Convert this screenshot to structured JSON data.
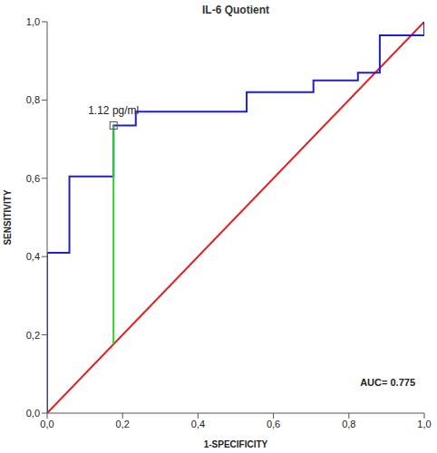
{
  "chart_data": {
    "type": "line",
    "title": "IL-6 Quotient",
    "x_label": "1-SPECIFICITY",
    "y_label": "SENSITIVITY",
    "xlim": [
      0,
      1
    ],
    "ylim": [
      0,
      1
    ],
    "xticks": [
      {
        "value": 0,
        "label": "0,0"
      },
      {
        "value": 0.2,
        "label": "0,2"
      },
      {
        "value": 0.4,
        "label": "0,4"
      },
      {
        "value": 0.6,
        "label": "0,6"
      },
      {
        "value": 0.8,
        "label": "0,8"
      },
      {
        "value": 1,
        "label": "1,0"
      }
    ],
    "yticks": [
      {
        "value": 0,
        "label": "0,0"
      },
      {
        "value": 0.2,
        "label": "0,2"
      },
      {
        "value": 0.4,
        "label": "0,4"
      },
      {
        "value": 0.6,
        "label": "0,6"
      },
      {
        "value": 0.8,
        "label": "0,8"
      },
      {
        "value": 1,
        "label": "1,0"
      }
    ],
    "grid": false,
    "series": [
      {
        "color": "#e02020",
        "line_style": "solid",
        "x": [
          0,
          1
        ],
        "values": [
          0,
          1
        ]
      },
      {
        "color": "#1f1fd6",
        "line_style": "solid",
        "x": [
          0,
          0,
          0.059,
          0.059,
          0.176,
          0.176,
          0.235,
          0.235,
          0.529,
          0.529,
          0.706,
          0.706,
          0.824,
          0.824,
          0.882,
          0.882,
          1,
          1
        ],
        "values": [
          0,
          0.41,
          0.41,
          0.605,
          0.605,
          0.735,
          0.735,
          0.77,
          0.77,
          0.82,
          0.82,
          0.85,
          0.85,
          0.87,
          0.87,
          0.965,
          0.965,
          1
        ]
      },
      {
        "color": "#33cc33",
        "line_style": "solid",
        "x": [
          0.176,
          0.176
        ],
        "values": [
          0.176,
          0.735
        ]
      }
    ],
    "annotations": [
      {
        "text": "1.12  pg/ml",
        "x": 0.176,
        "y": 0.735,
        "marker": "square"
      },
      {
        "text": "AUC= 0.775"
      }
    ]
  }
}
